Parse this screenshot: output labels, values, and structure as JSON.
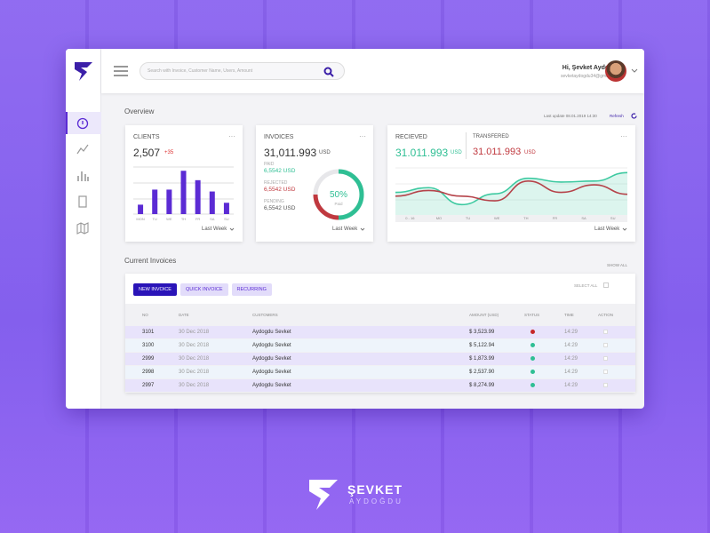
{
  "search": {
    "placeholder": "Search with Invoice, Customer Name, Users, Amount"
  },
  "user": {
    "greeting": "Hi, Şevket Aydoğdu",
    "email": "sevketaydogdu34@gmail.com"
  },
  "overview": {
    "title": "Overview",
    "last_update": "Last update 08.01.2019  14:30",
    "refresh": "Refresh"
  },
  "clients": {
    "title": "CLIENTS",
    "value": "2,507",
    "change": "+35",
    "period": "Last Week",
    "chart": {
      "type": "bar",
      "categories": [
        "MON",
        "TU",
        "WE",
        "TH",
        "FR",
        "SA",
        "SU"
      ],
      "values": [
        10,
        26,
        26,
        46,
        36,
        24,
        12
      ],
      "ylim": [
        0,
        50
      ],
      "color": "#5b2bd4"
    }
  },
  "invoices": {
    "title": "INVOICES",
    "value": "31,011.993",
    "currency": "USD",
    "items": [
      {
        "label": "PAID",
        "value": "6,5542 USD",
        "color": "#2fbf94"
      },
      {
        "label": "REJECTED",
        "value": "6,5542 USD",
        "color": "#c0393f"
      },
      {
        "label": "PENDING",
        "value": "6,5542 USD",
        "color": "#555555"
      }
    ],
    "progress": {
      "value": 50,
      "label": "50%"
    },
    "progress_caption": "Paid",
    "period": "Last Week"
  },
  "received": {
    "title": "RECIEVED",
    "value": "31.011.993",
    "currency": "USD",
    "transfer_title": "TRANSFERED",
    "transfer_value": "31.011.993",
    "transfer_currency": "USD",
    "period": "Last Week",
    "chart": {
      "type": "line",
      "categories": [
        "0 - 16",
        "MO",
        "TU",
        "WE",
        "TH",
        "FR",
        "SA",
        "SU"
      ],
      "ylim": [
        0,
        100
      ],
      "series": [
        {
          "color": "#3dc9a0",
          "values": [
            48,
            58,
            22,
            45,
            78,
            70,
            72,
            90
          ]
        },
        {
          "color": "#b5434a",
          "values": [
            40,
            52,
            40,
            30,
            72,
            48,
            64,
            44
          ]
        }
      ]
    }
  },
  "current": {
    "title": "Current Invoices",
    "show_all": "SHOW ALL",
    "buttons": [
      "NEW INVOICE",
      "QUICK INVOICE",
      "RECURRING"
    ],
    "select_all": "SELECT ALL",
    "table": {
      "columns": [
        "NO",
        "DATE",
        "CUSTOMERS",
        "AMOUNT (USD)",
        "STATUS",
        "TIME",
        "ACTION"
      ],
      "rows": [
        [
          "3101",
          "30 Dec 2018",
          "Aydogdu Sevket",
          "$ 3,523.99",
          "14:29"
        ],
        [
          "3100",
          "30 Dec 2018",
          "Aydogdu Sevket",
          "$ 5,122.94",
          "14:29"
        ],
        [
          "2999",
          "30 Dec 2018",
          "Aydogdu Sevket",
          "$ 1,873.99",
          "14:29"
        ],
        [
          "2998",
          "30 Dec 2018",
          "Aydogdu Sevket",
          "$ 2,537.90",
          "14:29"
        ],
        [
          "2997",
          "30 Dec 2018",
          "Aydogdu Sevket",
          "$ 8,274.99",
          "14:29"
        ]
      ],
      "status_colors": [
        "#c62828",
        "#2fbf94",
        "#2fbf94",
        "#2fbf94",
        "#2fbf94"
      ]
    }
  },
  "brand": {
    "name": "ŞEVKET",
    "subtitle": "AYDOĞDU"
  }
}
